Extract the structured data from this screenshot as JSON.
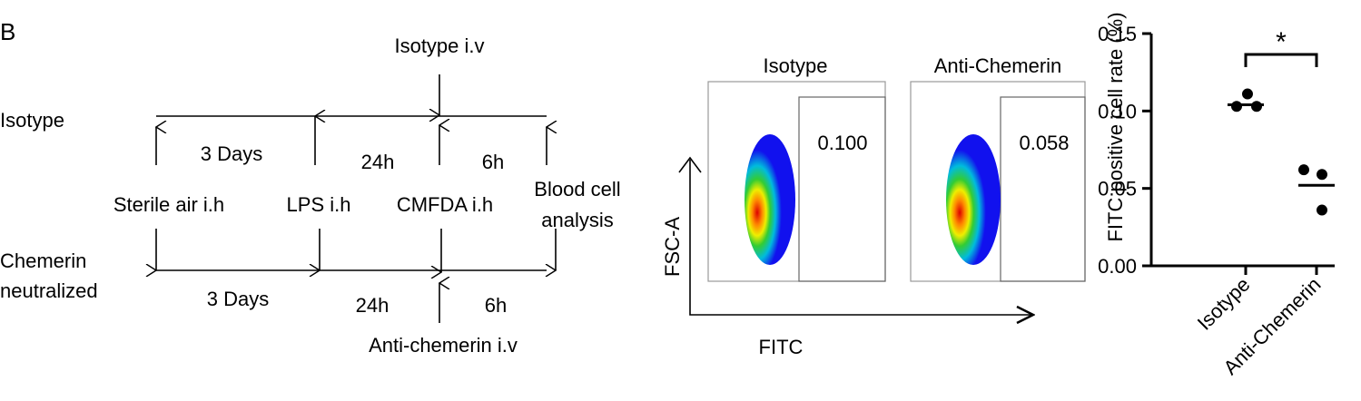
{
  "panel_label": "B",
  "diagram": {
    "rows": [
      "Isotype",
      "Chemerin",
      "neutralized"
    ],
    "top": {
      "injection": "Isotype i.v",
      "intervals": [
        "3 Days",
        "24h",
        "6h"
      ]
    },
    "steps": [
      "Sterile air i.h",
      "LPS i.h",
      "CMFDA i.h",
      "Blood cell",
      "analysis"
    ],
    "bottom": {
      "intervals": [
        "3 Days",
        "24h",
        "6h"
      ],
      "injection": "Anti-chemerin i.v"
    }
  },
  "flow": {
    "panels": [
      {
        "title": "Isotype",
        "gate": "0.100"
      },
      {
        "title": "Anti-Chemerin",
        "gate": "0.058"
      }
    ],
    "y_label": "FSC-A",
    "x_label": "FITC"
  },
  "chart_data": {
    "type": "dot",
    "y_label": "FITC positive cell rate (%)",
    "categories": [
      "Isotype",
      "Anti-Chemerin"
    ],
    "points": [
      [
        0.111,
        0.103,
        0.103
      ],
      [
        0.062,
        0.059,
        0.036
      ]
    ],
    "means": [
      0.104,
      0.052
    ],
    "color": "#000000",
    "ylim": [
      0,
      0.15
    ],
    "yticks": [
      {
        "value": 0,
        "label": "0.00"
      },
      {
        "value": 0.05,
        "label": "0.05"
      },
      {
        "value": 0.1,
        "label": "0.10"
      },
      {
        "value": 0.15,
        "label": "0.15"
      }
    ],
    "significance": "*"
  }
}
